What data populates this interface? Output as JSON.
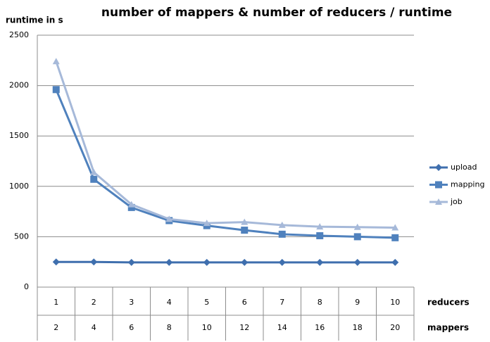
{
  "chart_data": {
    "type": "line",
    "title": "number of mappers & number of reducers / runtime",
    "y_label": "runtime in s",
    "categories": [
      "1",
      "2",
      "3",
      "4",
      "5",
      "6",
      "7",
      "8",
      "9",
      "10"
    ],
    "categories_label": "reducers",
    "categories2": [
      "2",
      "4",
      "6",
      "8",
      "10",
      "12",
      "14",
      "16",
      "18",
      "20"
    ],
    "categories2_label": "mappers",
    "ylim": [
      0,
      2500
    ],
    "yticks": [
      0,
      500,
      1000,
      1500,
      2000,
      2500
    ],
    "grid": true,
    "legend": "right",
    "series": [
      {
        "name": "upload",
        "color": "#3f6fae",
        "marker": "diamond",
        "values": [
          250,
          250,
          245,
          245,
          245,
          245,
          245,
          245,
          245,
          245
        ]
      },
      {
        "name": "mapping",
        "color": "#4f81bd",
        "marker": "square",
        "values": [
          1960,
          1070,
          790,
          660,
          610,
          565,
          525,
          510,
          500,
          490
        ]
      },
      {
        "name": "job",
        "color": "#a6b9d9",
        "marker": "triangle",
        "values": [
          2240,
          1140,
          820,
          675,
          635,
          645,
          615,
          600,
          595,
          590
        ]
      }
    ]
  }
}
